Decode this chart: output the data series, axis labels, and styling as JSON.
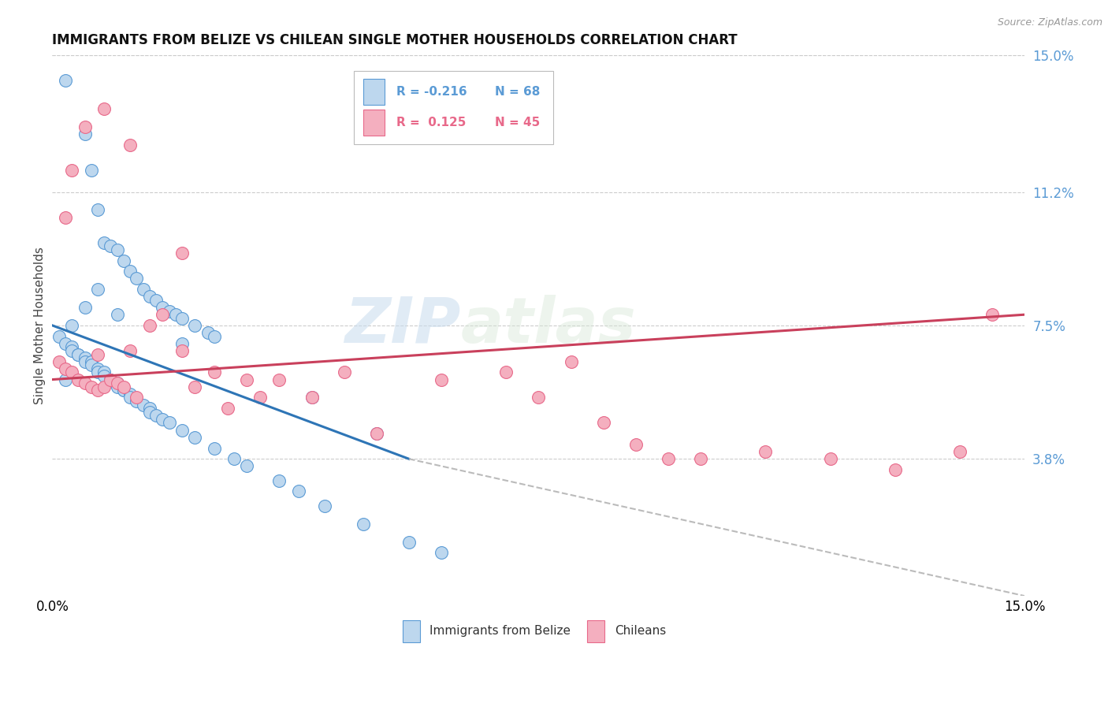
{
  "title": "IMMIGRANTS FROM BELIZE VS CHILEAN SINGLE MOTHER HOUSEHOLDS CORRELATION CHART",
  "source": "Source: ZipAtlas.com",
  "ylabel": "Single Mother Households",
  "right_yticks": [
    "15.0%",
    "11.2%",
    "7.5%",
    "3.8%"
  ],
  "right_ytick_vals": [
    0.15,
    0.112,
    0.075,
    0.038
  ],
  "xlim": [
    0.0,
    0.15
  ],
  "ylim": [
    0.0,
    0.15
  ],
  "watermark_zip": "ZIP",
  "watermark_atlas": "atlas",
  "blue_color": "#BDD7EE",
  "pink_color": "#F4AFBF",
  "blue_edge_color": "#5B9BD5",
  "pink_edge_color": "#E8698A",
  "blue_line_color": "#2E75B6",
  "pink_line_color": "#C9405C",
  "dash_line_color": "#BBBBBB",
  "blue_scatter_x": [
    0.002,
    0.005,
    0.006,
    0.007,
    0.008,
    0.009,
    0.01,
    0.011,
    0.012,
    0.013,
    0.014,
    0.015,
    0.016,
    0.017,
    0.018,
    0.019,
    0.02,
    0.022,
    0.024,
    0.025,
    0.001,
    0.002,
    0.003,
    0.003,
    0.004,
    0.004,
    0.005,
    0.005,
    0.006,
    0.006,
    0.007,
    0.007,
    0.008,
    0.008,
    0.009,
    0.009,
    0.01,
    0.01,
    0.011,
    0.011,
    0.012,
    0.012,
    0.013,
    0.014,
    0.015,
    0.015,
    0.016,
    0.017,
    0.018,
    0.02,
    0.022,
    0.025,
    0.028,
    0.03,
    0.035,
    0.038,
    0.042,
    0.048,
    0.055,
    0.06,
    0.002,
    0.003,
    0.005,
    0.007,
    0.01,
    0.02,
    0.04,
    0.05
  ],
  "blue_scatter_y": [
    0.143,
    0.128,
    0.118,
    0.107,
    0.098,
    0.097,
    0.096,
    0.093,
    0.09,
    0.088,
    0.085,
    0.083,
    0.082,
    0.08,
    0.079,
    0.078,
    0.077,
    0.075,
    0.073,
    0.072,
    0.072,
    0.07,
    0.069,
    0.068,
    0.067,
    0.067,
    0.066,
    0.065,
    0.065,
    0.064,
    0.063,
    0.062,
    0.062,
    0.061,
    0.06,
    0.06,
    0.059,
    0.058,
    0.057,
    0.057,
    0.056,
    0.055,
    0.054,
    0.053,
    0.052,
    0.051,
    0.05,
    0.049,
    0.048,
    0.046,
    0.044,
    0.041,
    0.038,
    0.036,
    0.032,
    0.029,
    0.025,
    0.02,
    0.015,
    0.012,
    0.06,
    0.075,
    0.08,
    0.085,
    0.078,
    0.07,
    0.055,
    0.045
  ],
  "pink_scatter_x": [
    0.001,
    0.002,
    0.003,
    0.004,
    0.005,
    0.006,
    0.007,
    0.007,
    0.008,
    0.009,
    0.01,
    0.011,
    0.012,
    0.013,
    0.015,
    0.017,
    0.02,
    0.022,
    0.025,
    0.027,
    0.03,
    0.032,
    0.035,
    0.04,
    0.045,
    0.05,
    0.06,
    0.07,
    0.075,
    0.08,
    0.085,
    0.09,
    0.095,
    0.1,
    0.11,
    0.12,
    0.13,
    0.14,
    0.145,
    0.002,
    0.003,
    0.005,
    0.008,
    0.012,
    0.02
  ],
  "pink_scatter_y": [
    0.065,
    0.063,
    0.062,
    0.06,
    0.059,
    0.058,
    0.057,
    0.067,
    0.058,
    0.06,
    0.059,
    0.058,
    0.068,
    0.055,
    0.075,
    0.078,
    0.068,
    0.058,
    0.062,
    0.052,
    0.06,
    0.055,
    0.06,
    0.055,
    0.062,
    0.045,
    0.06,
    0.062,
    0.055,
    0.065,
    0.048,
    0.042,
    0.038,
    0.038,
    0.04,
    0.038,
    0.035,
    0.04,
    0.078,
    0.105,
    0.118,
    0.13,
    0.135,
    0.125,
    0.095
  ],
  "blue_trend_x0": 0.0,
  "blue_trend_x1": 0.055,
  "blue_trend_y0": 0.075,
  "blue_trend_y1": 0.038,
  "pink_trend_x0": 0.0,
  "pink_trend_x1": 0.15,
  "pink_trend_y0": 0.06,
  "pink_trend_y1": 0.078,
  "dash_trend_x0": 0.055,
  "dash_trend_x1": 0.15,
  "dash_trend_y0": 0.038,
  "dash_trend_y1": 0.0
}
